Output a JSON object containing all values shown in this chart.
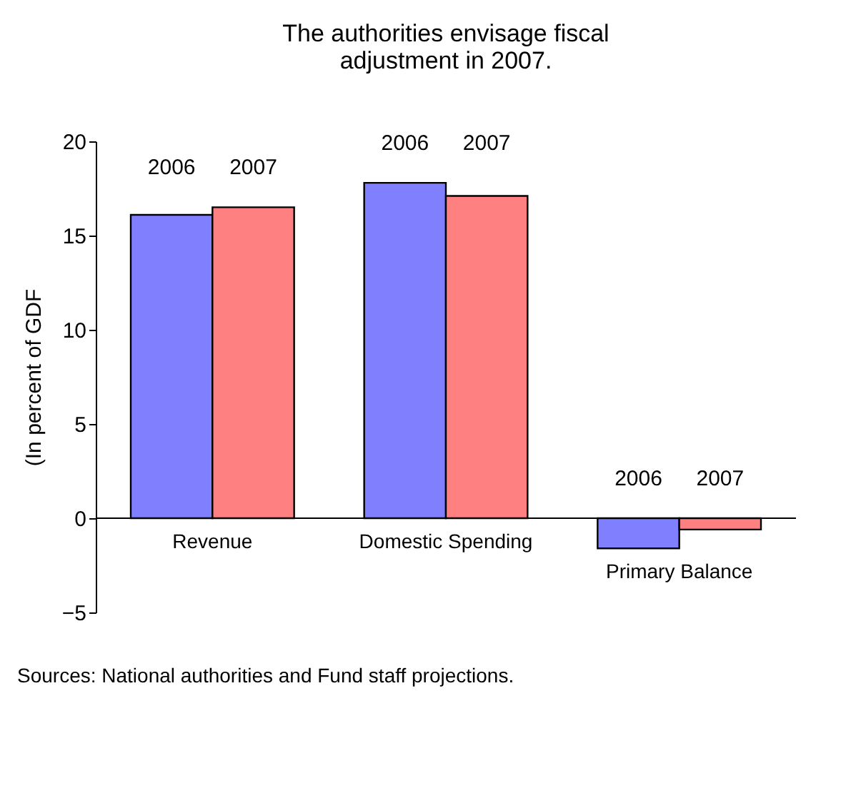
{
  "chart_data": {
    "type": "bar",
    "title": [
      "The authorities envisage fiscal",
      "adjustment in 2007."
    ],
    "ylabel": "(In percent of GDF",
    "categories": [
      "Revenue",
      "Domestic Spending",
      "Primary Balance"
    ],
    "series": [
      {
        "name": "2006",
        "color": "#8080ff",
        "values": [
          16.1,
          17.8,
          -1.6
        ]
      },
      {
        "name": "2007",
        "color": "#ff8080",
        "values": [
          16.5,
          17.1,
          -0.6
        ]
      }
    ],
    "ylim": [
      -5,
      20
    ],
    "yticks": [
      -5,
      0,
      5,
      10,
      15,
      20
    ],
    "grid": false,
    "legend": false,
    "annotations": [
      "Sources: National authorities and Fund staff projections."
    ]
  }
}
